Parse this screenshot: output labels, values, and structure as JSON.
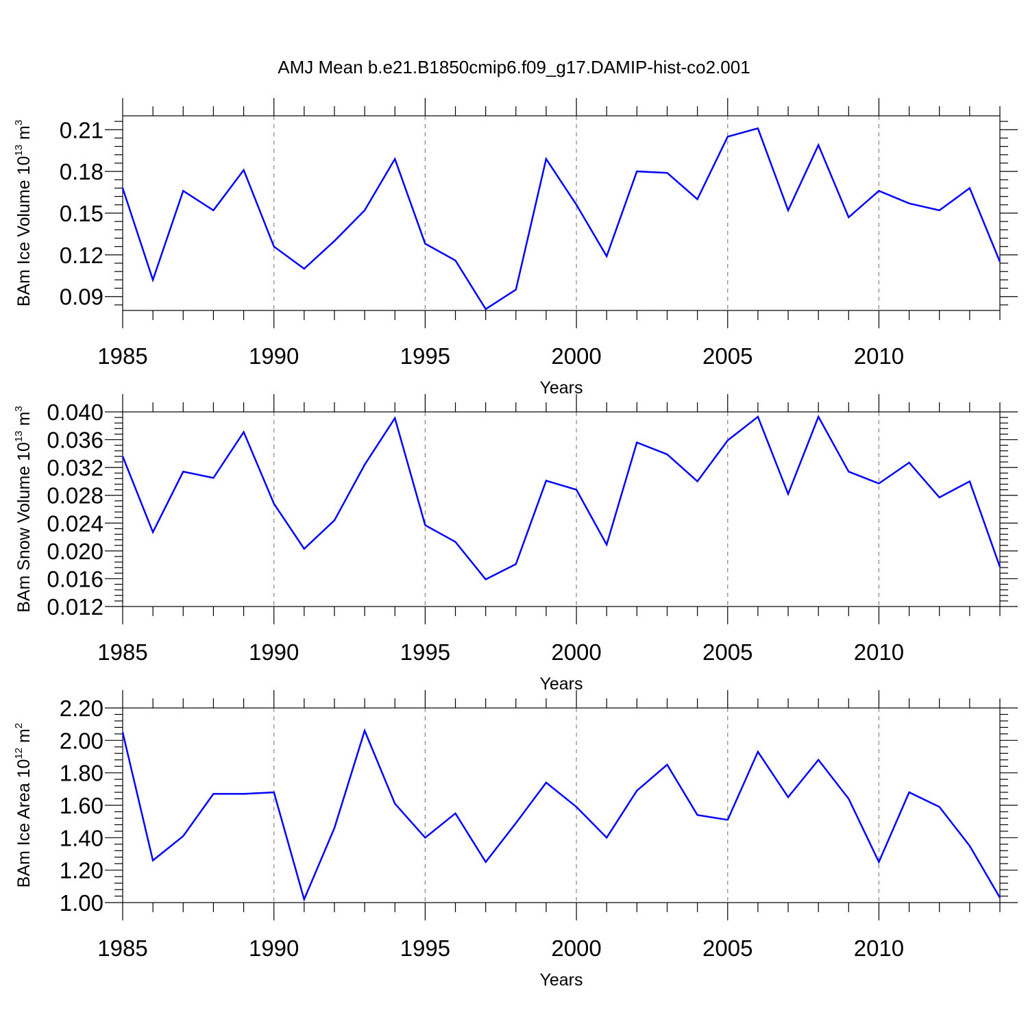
{
  "figure_title": "AMJ Mean b.e21.B1850cmip6.f09_g17.DAMIP-hist-co2.001",
  "chart_data": [
    {
      "type": "line",
      "title": "AMJ Mean b.e21.B1850cmip6.f09_g17.DAMIP-hist-co2.001",
      "ylabel": {
        "prefix": "BAm Ice Volume 10",
        "exp": "13",
        "unit": " m",
        "unit_exp": "3"
      },
      "xlabel": "Years",
      "xlim": [
        1985,
        2014
      ],
      "xticks": [
        1985,
        1990,
        1995,
        2000,
        2005,
        2010
      ],
      "xtick_labels": [
        "1985",
        "1990",
        "1995",
        "2000",
        "2005",
        "2010"
      ],
      "ylim": [
        0.08,
        0.22
      ],
      "yticks": [
        0.09,
        0.12,
        0.15,
        0.18,
        0.21
      ],
      "ytick_labels": [
        "0.09",
        "0.12",
        "0.15",
        "0.18",
        "0.21"
      ],
      "grid": "vertical dashed at major x ticks",
      "series": [
        {
          "name": "BAm Ice Volume",
          "color": "#0000ff",
          "x": [
            1985,
            1986,
            1987,
            1988,
            1989,
            1990,
            1991,
            1992,
            1993,
            1994,
            1995,
            1996,
            1997,
            1998,
            1999,
            2000,
            2001,
            2002,
            2003,
            2004,
            2005,
            2006,
            2007,
            2008,
            2009,
            2010,
            2011,
            2012,
            2013,
            2014
          ],
          "values": [
            0.168,
            0.102,
            0.166,
            0.152,
            0.181,
            0.126,
            0.11,
            0.13,
            0.152,
            0.189,
            0.128,
            0.116,
            0.081,
            0.095,
            0.189,
            0.156,
            0.119,
            0.18,
            0.179,
            0.16,
            0.205,
            0.211,
            0.152,
            0.199,
            0.147,
            0.166,
            0.157,
            0.152,
            0.168,
            0.115
          ]
        }
      ]
    },
    {
      "type": "line",
      "ylabel": {
        "prefix": "BAm Snow Volume 10",
        "exp": "13",
        "unit": " m",
        "unit_exp": "3"
      },
      "xlabel": "Years",
      "xlim": [
        1985,
        2014
      ],
      "xticks": [
        1985,
        1990,
        1995,
        2000,
        2005,
        2010
      ],
      "xtick_labels": [
        "1985",
        "1990",
        "1995",
        "2000",
        "2005",
        "2010"
      ],
      "ylim": [
        0.012,
        0.04
      ],
      "yticks": [
        0.012,
        0.016,
        0.02,
        0.024,
        0.028,
        0.032,
        0.036,
        0.04
      ],
      "ytick_labels": [
        "0.012",
        "0.016",
        "0.020",
        "0.024",
        "0.028",
        "0.032",
        "0.036",
        "0.040"
      ],
      "grid": "vertical dashed at major x ticks",
      "series": [
        {
          "name": "BAm Snow Volume",
          "color": "#0000ff",
          "x": [
            1985,
            1986,
            1987,
            1988,
            1989,
            1990,
            1991,
            1992,
            1993,
            1994,
            1995,
            1996,
            1997,
            1998,
            1999,
            2000,
            2001,
            2002,
            2003,
            2004,
            2005,
            2006,
            2007,
            2008,
            2009,
            2010,
            2011,
            2012,
            2013,
            2014
          ],
          "values": [
            0.0336,
            0.0227,
            0.0314,
            0.0305,
            0.0371,
            0.0268,
            0.0203,
            0.0244,
            0.0324,
            0.0391,
            0.0237,
            0.0213,
            0.0159,
            0.0181,
            0.0301,
            0.0288,
            0.0209,
            0.0356,
            0.0339,
            0.03,
            0.0359,
            0.0393,
            0.0282,
            0.0393,
            0.0314,
            0.0297,
            0.0327,
            0.0277,
            0.03,
            0.0177
          ]
        }
      ]
    },
    {
      "type": "line",
      "ylabel": {
        "prefix": "BAm Ice Area 10",
        "exp": "12",
        "unit": " m",
        "unit_exp": "2"
      },
      "xlabel": "Years",
      "xlim": [
        1985,
        2014
      ],
      "xticks": [
        1985,
        1990,
        1995,
        2000,
        2005,
        2010
      ],
      "xtick_labels": [
        "1985",
        "1990",
        "1995",
        "2000",
        "2005",
        "2010"
      ],
      "ylim": [
        1.0,
        2.2
      ],
      "yticks": [
        1.0,
        1.2,
        1.4,
        1.6,
        1.8,
        2.0,
        2.2
      ],
      "ytick_labels": [
        "1.00",
        "1.20",
        "1.40",
        "1.60",
        "1.80",
        "2.00",
        "2.20"
      ],
      "grid": "vertical dashed at major x ticks",
      "series": [
        {
          "name": "BAm Ice Area",
          "color": "#0000ff",
          "x": [
            1985,
            1986,
            1987,
            1988,
            1989,
            1990,
            1991,
            1992,
            1993,
            1994,
            1995,
            1996,
            1997,
            1998,
            1999,
            2000,
            2001,
            2002,
            2003,
            2004,
            2005,
            2006,
            2007,
            2008,
            2009,
            2010,
            2011,
            2012,
            2013,
            2014
          ],
          "values": [
            2.05,
            1.26,
            1.41,
            1.67,
            1.67,
            1.68,
            1.02,
            1.46,
            2.06,
            1.61,
            1.4,
            1.55,
            1.25,
            1.49,
            1.74,
            1.59,
            1.4,
            1.69,
            1.85,
            1.54,
            1.51,
            1.93,
            1.65,
            1.88,
            1.64,
            1.25,
            1.68,
            1.59,
            1.35,
            1.03
          ]
        }
      ]
    }
  ]
}
